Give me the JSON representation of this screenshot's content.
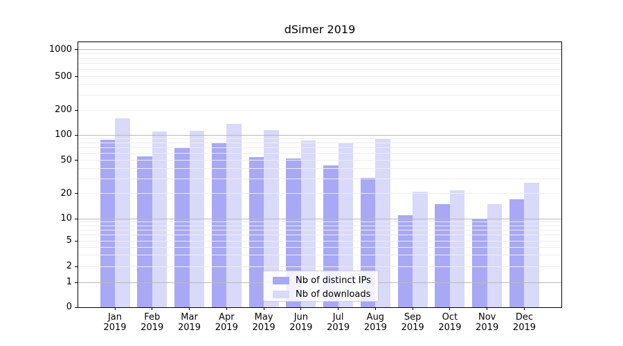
{
  "chart_data": {
    "type": "bar",
    "title": "dSimer 2019",
    "xlabel": "",
    "ylabel": "",
    "categories": [
      "Jan 2019",
      "Feb 2019",
      "Mar 2019",
      "Apr 2019",
      "May 2019",
      "Jun 2019",
      "Jul 2019",
      "Aug 2019",
      "Sep 2019",
      "Oct 2019",
      "Nov 2019",
      "Dec 2019"
    ],
    "series": [
      {
        "name": "Nb of distinct IPs",
        "color": "#a8a8f5",
        "values": [
          88,
          55,
          70,
          80,
          54,
          52,
          43,
          31,
          11,
          15,
          10,
          17
        ]
      },
      {
        "name": "Nb of downloads",
        "color": "#d9d9fa",
        "values": [
          160,
          110,
          113,
          135,
          115,
          86,
          80,
          90,
          21,
          22,
          15,
          27
        ]
      }
    ],
    "y_axis": {
      "scale": "symlog",
      "tick_values": [
        0,
        1,
        2,
        5,
        10,
        20,
        50,
        100,
        200,
        500,
        1000
      ],
      "tick_labels": [
        "0",
        "1",
        "2",
        "5",
        "10",
        "20",
        "50",
        "100",
        "200",
        "500",
        "1000"
      ],
      "range": [
        0,
        1200
      ]
    },
    "gridlines": {
      "major": [
        1,
        10,
        100,
        1000
      ],
      "minor": [
        2,
        3,
        4,
        5,
        6,
        7,
        8,
        9,
        20,
        30,
        40,
        50,
        60,
        70,
        80,
        90,
        200,
        300,
        400,
        500,
        600,
        700,
        800,
        900
      ],
      "major_color": "#b9b9b9",
      "minor_color": "#ededed"
    },
    "legend": {
      "position": "lower center",
      "items": [
        "Nb of distinct IPs",
        "Nb of downloads"
      ]
    }
  }
}
